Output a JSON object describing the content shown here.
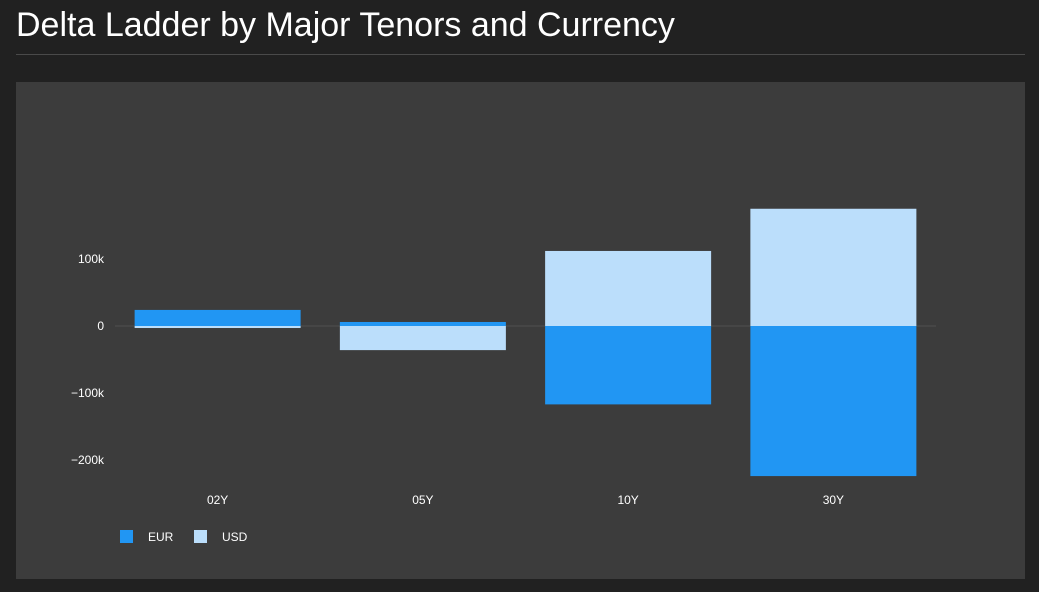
{
  "header": {
    "title": "Delta Ladder by Major Tenors and Currency"
  },
  "chart_data": {
    "type": "bar",
    "stacked": true,
    "title": "",
    "xlabel": "",
    "ylabel": "",
    "categories": [
      "02Y",
      "05Y",
      "10Y",
      "30Y"
    ],
    "series": [
      {
        "name": "EUR",
        "color": "#2196f3",
        "values": [
          24000,
          6000,
          -117000,
          -224000
        ]
      },
      {
        "name": "USD",
        "color": "#bbdefb",
        "values": [
          -3000,
          -36000,
          112000,
          175000
        ]
      }
    ],
    "yticks": [
      {
        "value": 100000,
        "label": "100k"
      },
      {
        "value": 0,
        "label": "0"
      },
      {
        "value": -100000,
        "label": "−100k"
      },
      {
        "value": -200000,
        "label": "−200k"
      }
    ],
    "ylim": [
      -225000,
      180000
    ],
    "grid": false,
    "legend_position": "bottom-left"
  }
}
